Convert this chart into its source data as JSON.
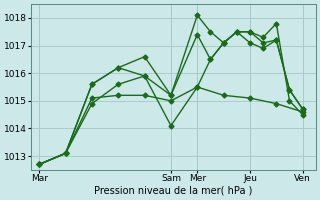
{
  "xlabel": "Pression niveau de la mer( hPa )",
  "ylim": [
    1012.5,
    1018.5
  ],
  "yticks": [
    1013,
    1014,
    1015,
    1016,
    1017,
    1018
  ],
  "xtick_labels": [
    "Mar",
    "Sam",
    "Mer",
    "Jeu",
    "Ven"
  ],
  "xtick_positions": [
    0.0,
    5.0,
    6.0,
    8.0,
    10.0
  ],
  "xlim": [
    -0.3,
    10.5
  ],
  "background_color": "#cce8e8",
  "grid_color": "#aacccc",
  "line_color": "#1a6b1a",
  "lines": [
    {
      "x": [
        0,
        1,
        2,
        3,
        4,
        5,
        6,
        6.5,
        7,
        7.5,
        8,
        8.5,
        9,
        9.5,
        10
      ],
      "y": [
        1012.7,
        1013.1,
        1014.9,
        1015.6,
        1015.9,
        1015.2,
        1018.1,
        1017.5,
        1017.1,
        1017.5,
        1017.5,
        1017.3,
        1017.8,
        1015.0,
        1014.5
      ]
    },
    {
      "x": [
        0,
        1,
        2,
        3,
        4,
        5,
        6,
        6.5,
        7,
        7.5,
        8,
        8.5,
        9,
        9.5,
        10
      ],
      "y": [
        1012.7,
        1013.1,
        1015.6,
        1016.2,
        1016.6,
        1015.2,
        1017.4,
        1016.5,
        1017.1,
        1017.5,
        1017.5,
        1017.1,
        1017.2,
        1015.4,
        1014.7
      ]
    },
    {
      "x": [
        0,
        1,
        2,
        3,
        4,
        5,
        6,
        6.5,
        7,
        7.5,
        8,
        8.5,
        9,
        9.5,
        10
      ],
      "y": [
        1012.7,
        1013.1,
        1015.6,
        1016.2,
        1015.9,
        1014.1,
        1015.5,
        1016.5,
        1017.1,
        1017.5,
        1017.1,
        1016.9,
        1017.2,
        1015.4,
        1014.7
      ]
    },
    {
      "x": [
        0,
        1,
        2,
        3,
        4,
        5,
        6,
        7,
        8,
        9,
        10
      ],
      "y": [
        1012.7,
        1013.1,
        1015.1,
        1015.2,
        1015.2,
        1015.0,
        1015.5,
        1015.2,
        1015.1,
        1014.9,
        1014.6
      ]
    }
  ],
  "vlines": [
    0.0,
    5.0,
    6.0,
    8.0,
    10.0
  ]
}
